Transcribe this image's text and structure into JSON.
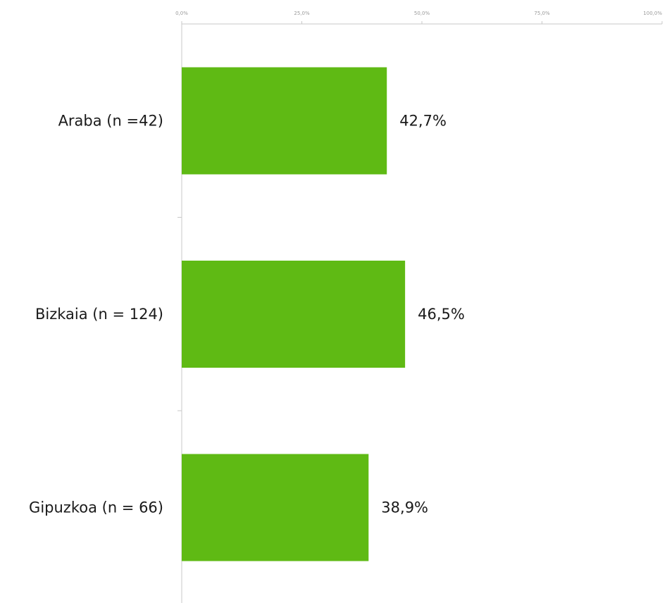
{
  "chart_data": {
    "type": "bar",
    "orientation": "horizontal",
    "categories": [
      "Araba (n =42)",
      "Bizkaia (n = 124)",
      "Gipuzkoa (n = 66)"
    ],
    "values": [
      42.7,
      46.5,
      38.9
    ],
    "value_labels": [
      "42,7%",
      "46,5%",
      "38,9%"
    ],
    "xlim": [
      0,
      100
    ],
    "x_ticks": [
      0,
      25,
      50,
      75,
      100
    ],
    "x_tick_labels": [
      "0,0%",
      "25,0%",
      "50,0%",
      "75,0%",
      "100,0%"
    ],
    "x_axis_position": "top",
    "grid": false,
    "legend": "none",
    "bar_color": "#5fba14"
  }
}
